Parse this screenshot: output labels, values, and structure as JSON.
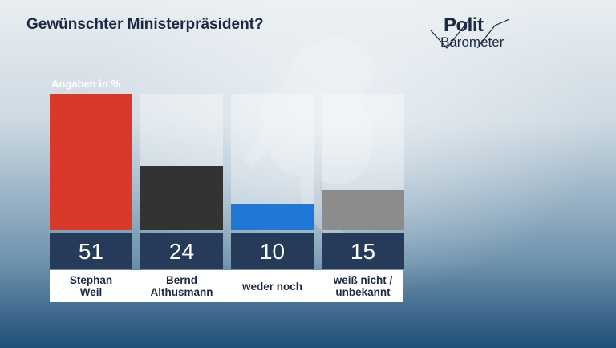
{
  "header": {
    "title": "Gewünschter Ministerpräsident?"
  },
  "logo": {
    "line1": "Polit",
    "line2": "Barometer"
  },
  "chart_data": {
    "type": "bar",
    "unit_label": "Angaben in %",
    "categories": [
      "Stephan\nWeil",
      "Bernd\nAlthusmann",
      "weder noch",
      "weiß nicht /\nunbekannt"
    ],
    "values": [
      51,
      24,
      10,
      15
    ],
    "value_labels": [
      "51",
      "24",
      "10",
      "15"
    ],
    "colors": [
      "#d8392b",
      "#333333",
      "#1f78d4",
      "#8c8c8c"
    ],
    "ylim": [
      0,
      51
    ]
  }
}
